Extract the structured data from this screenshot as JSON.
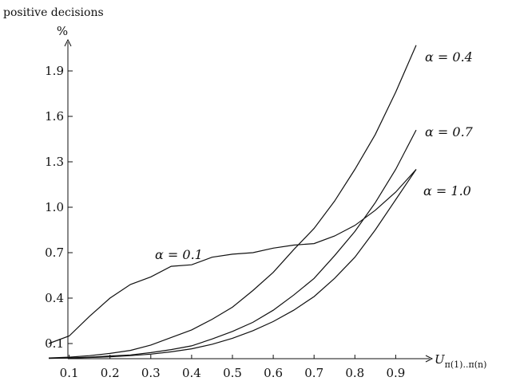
{
  "chart_data": {
    "type": "line",
    "ylabel_top": "positive decisions",
    "ylabel_unit": "%",
    "xlabel": "U",
    "xlabel_sub": "π(1)..π(n)",
    "xlim": [
      0.0,
      1.0
    ],
    "ylim": [
      0.0,
      2.05
    ],
    "xticks": [
      "0.1",
      "0.2",
      "0.3",
      "0.4",
      "0.5",
      "0.6",
      "0.7",
      "0.8",
      "0.9"
    ],
    "yticks": [
      "0.1",
      "0.4",
      "0.7",
      "1.0",
      "1.3",
      "1.6",
      "1.9"
    ],
    "grid": false,
    "series": [
      {
        "name": "α = 0.1",
        "x": [
          0.05,
          0.1,
          0.15,
          0.2,
          0.25,
          0.3,
          0.35,
          0.4,
          0.45,
          0.5,
          0.55,
          0.6,
          0.65,
          0.7,
          0.75,
          0.8,
          0.85,
          0.9,
          0.95
        ],
        "y": [
          0.1,
          0.15,
          0.28,
          0.4,
          0.49,
          0.54,
          0.61,
          0.62,
          0.67,
          0.69,
          0.7,
          0.73,
          0.75,
          0.76,
          0.81,
          0.88,
          0.98,
          1.1,
          1.25
        ]
      },
      {
        "name": "α = 0.4",
        "x": [
          0.05,
          0.1,
          0.15,
          0.2,
          0.25,
          0.3,
          0.35,
          0.4,
          0.45,
          0.5,
          0.55,
          0.6,
          0.65,
          0.7,
          0.75,
          0.8,
          0.85,
          0.9,
          0.95
        ],
        "y": [
          0.005,
          0.01,
          0.02,
          0.035,
          0.055,
          0.09,
          0.14,
          0.19,
          0.26,
          0.34,
          0.45,
          0.57,
          0.72,
          0.86,
          1.04,
          1.25,
          1.48,
          1.76,
          2.07
        ]
      },
      {
        "name": "α = 0.7",
        "x": [
          0.05,
          0.1,
          0.15,
          0.2,
          0.25,
          0.3,
          0.35,
          0.4,
          0.45,
          0.5,
          0.55,
          0.6,
          0.65,
          0.7,
          0.75,
          0.8,
          0.85,
          0.9,
          0.95
        ],
        "y": [
          0.003,
          0.005,
          0.01,
          0.018,
          0.025,
          0.04,
          0.06,
          0.085,
          0.13,
          0.18,
          0.24,
          0.32,
          0.42,
          0.53,
          0.68,
          0.84,
          1.03,
          1.25,
          1.51
        ]
      },
      {
        "name": "α = 1.0",
        "x": [
          0.05,
          0.1,
          0.15,
          0.2,
          0.25,
          0.3,
          0.35,
          0.4,
          0.45,
          0.5,
          0.55,
          0.6,
          0.65,
          0.7,
          0.75,
          0.8,
          0.85,
          0.9,
          0.95
        ],
        "y": [
          0.002,
          0.004,
          0.008,
          0.012,
          0.02,
          0.03,
          0.045,
          0.065,
          0.095,
          0.135,
          0.185,
          0.245,
          0.32,
          0.41,
          0.53,
          0.67,
          0.85,
          1.05,
          1.25
        ]
      }
    ]
  }
}
